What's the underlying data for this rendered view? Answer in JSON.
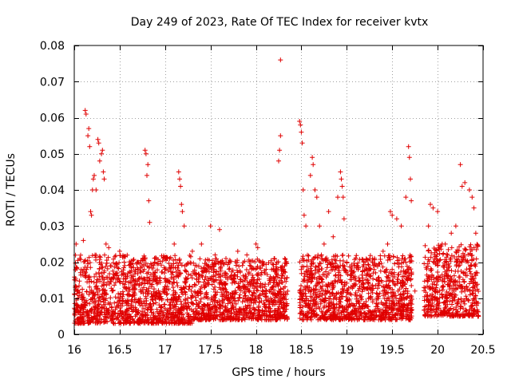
{
  "chart_data": {
    "type": "scatter",
    "title": "Day 249 of 2023, Rate Of TEC Index for receiver kvtx",
    "xlabel": "GPS time / hours",
    "ylabel": "ROTI / TECUs",
    "xlim": [
      16,
      20.5
    ],
    "ylim": [
      0,
      0.08
    ],
    "xticks": [
      16,
      16.5,
      17,
      17.5,
      18,
      18.5,
      19,
      19.5,
      20,
      20.5
    ],
    "xtick_labels": [
      "16",
      "16.5",
      "17",
      "17.5",
      "18",
      "18.5",
      "19",
      "19.5",
      "20",
      "20.5"
    ],
    "yticks": [
      0,
      0.01,
      0.02,
      0.03,
      0.04,
      0.05,
      0.06,
      0.07,
      0.08
    ],
    "ytick_labels": [
      "0",
      "0.01",
      "0.02",
      "0.03",
      "0.04",
      "0.05",
      "0.06",
      "0.07",
      "0.08"
    ],
    "grid": true,
    "marker": "+",
    "color": "#e00000",
    "series": [
      {
        "name": "ROTI",
        "points": [
          [
            16.02,
            0.025
          ],
          [
            16.03,
            0.012
          ],
          [
            16.05,
            0.004
          ],
          [
            16.07,
            0.003
          ],
          [
            16.08,
            0.008
          ],
          [
            16.1,
            0.026
          ],
          [
            16.12,
            0.062
          ],
          [
            16.13,
            0.061
          ],
          [
            16.15,
            0.055
          ],
          [
            16.16,
            0.057
          ],
          [
            16.17,
            0.052
          ],
          [
            16.18,
            0.034
          ],
          [
            16.19,
            0.033
          ],
          [
            16.2,
            0.04
          ],
          [
            16.21,
            0.043
          ],
          [
            16.22,
            0.044
          ],
          [
            16.24,
            0.04
          ],
          [
            16.26,
            0.054
          ],
          [
            16.27,
            0.053
          ],
          [
            16.28,
            0.048
          ],
          [
            16.3,
            0.05
          ],
          [
            16.31,
            0.051
          ],
          [
            16.32,
            0.045
          ],
          [
            16.33,
            0.043
          ],
          [
            16.35,
            0.025
          ],
          [
            16.38,
            0.024
          ],
          [
            16.42,
            0.004
          ],
          [
            16.45,
            0.003
          ],
          [
            16.5,
            0.023
          ],
          [
            16.55,
            0.02
          ],
          [
            16.6,
            0.013
          ],
          [
            16.65,
            0.016
          ],
          [
            16.7,
            0.02
          ],
          [
            16.78,
            0.051
          ],
          [
            16.79,
            0.05
          ],
          [
            16.8,
            0.044
          ],
          [
            16.81,
            0.047
          ],
          [
            16.82,
            0.037
          ],
          [
            16.83,
            0.031
          ],
          [
            16.9,
            0.015
          ],
          [
            16.95,
            0.01
          ],
          [
            17.0,
            0.018
          ],
          [
            17.05,
            0.021
          ],
          [
            17.1,
            0.025
          ],
          [
            17.15,
            0.045
          ],
          [
            17.16,
            0.043
          ],
          [
            17.17,
            0.041
          ],
          [
            17.18,
            0.036
          ],
          [
            17.19,
            0.034
          ],
          [
            17.21,
            0.03
          ],
          [
            17.25,
            0.01
          ],
          [
            17.3,
            0.023
          ],
          [
            17.4,
            0.025
          ],
          [
            17.5,
            0.03
          ],
          [
            17.55,
            0.022
          ],
          [
            17.6,
            0.029
          ],
          [
            17.7,
            0.02
          ],
          [
            17.8,
            0.023
          ],
          [
            17.9,
            0.022
          ],
          [
            18.0,
            0.025
          ],
          [
            18.02,
            0.024
          ],
          [
            18.1,
            0.017
          ],
          [
            18.2,
            0.021
          ],
          [
            18.25,
            0.048
          ],
          [
            18.26,
            0.051
          ],
          [
            18.27,
            0.055
          ],
          [
            18.27,
            0.076
          ],
          [
            18.48,
            0.059
          ],
          [
            18.49,
            0.058
          ],
          [
            18.5,
            0.056
          ],
          [
            18.51,
            0.053
          ],
          [
            18.52,
            0.04
          ],
          [
            18.53,
            0.033
          ],
          [
            18.55,
            0.03
          ],
          [
            18.6,
            0.044
          ],
          [
            18.62,
            0.049
          ],
          [
            18.63,
            0.047
          ],
          [
            18.65,
            0.04
          ],
          [
            18.67,
            0.038
          ],
          [
            18.7,
            0.03
          ],
          [
            18.75,
            0.025
          ],
          [
            18.8,
            0.034
          ],
          [
            18.85,
            0.027
          ],
          [
            18.9,
            0.038
          ],
          [
            18.93,
            0.045
          ],
          [
            18.94,
            0.043
          ],
          [
            18.95,
            0.041
          ],
          [
            18.96,
            0.038
          ],
          [
            18.97,
            0.032
          ],
          [
            19.0,
            0.02
          ],
          [
            19.1,
            0.015
          ],
          [
            19.2,
            0.02
          ],
          [
            19.3,
            0.018
          ],
          [
            19.4,
            0.023
          ],
          [
            19.45,
            0.025
          ],
          [
            19.48,
            0.034
          ],
          [
            19.5,
            0.033
          ],
          [
            19.55,
            0.032
          ],
          [
            19.6,
            0.03
          ],
          [
            19.65,
            0.038
          ],
          [
            19.68,
            0.052
          ],
          [
            19.69,
            0.049
          ],
          [
            19.7,
            0.043
          ],
          [
            19.71,
            0.037
          ],
          [
            19.75,
            0.012
          ],
          [
            19.9,
            0.03
          ],
          [
            19.92,
            0.036
          ],
          [
            19.95,
            0.035
          ],
          [
            20.0,
            0.034
          ],
          [
            20.05,
            0.025
          ],
          [
            20.1,
            0.02
          ],
          [
            20.15,
            0.028
          ],
          [
            20.2,
            0.03
          ],
          [
            20.25,
            0.047
          ],
          [
            20.27,
            0.041
          ],
          [
            20.3,
            0.042
          ],
          [
            20.35,
            0.04
          ],
          [
            20.38,
            0.038
          ],
          [
            20.4,
            0.035
          ],
          [
            20.42,
            0.028
          ],
          [
            20.45,
            0.005
          ]
        ]
      }
    ],
    "dense_bands": [
      {
        "x_from": 16.0,
        "x_to": 17.3,
        "y_low": 0.003,
        "y_high": 0.022
      },
      {
        "x_from": 17.3,
        "x_to": 18.35,
        "y_low": 0.004,
        "y_high": 0.021
      },
      {
        "x_from": 18.48,
        "x_to": 19.72,
        "y_low": 0.004,
        "y_high": 0.022
      },
      {
        "x_from": 19.85,
        "x_to": 20.45,
        "y_low": 0.005,
        "y_high": 0.025
      }
    ]
  }
}
